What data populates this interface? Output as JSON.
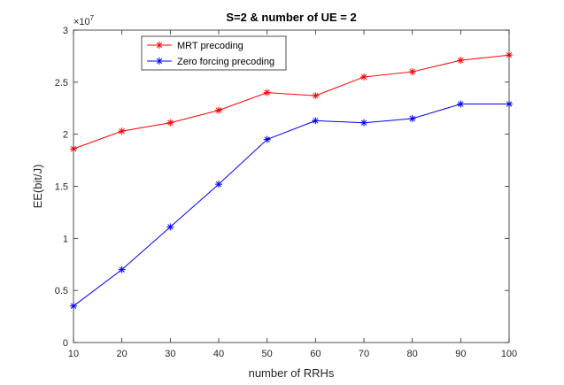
{
  "chart_data": {
    "type": "line",
    "title": "S=2 & number of UE = 2",
    "xlabel": "number of RRHs",
    "ylabel": "EE(bit/J)",
    "y_exponent_label": "×10",
    "y_exponent_power": "7",
    "xlim": [
      10,
      100
    ],
    "ylim": [
      0,
      3
    ],
    "x_ticks": [
      10,
      20,
      30,
      40,
      50,
      60,
      70,
      80,
      90,
      100
    ],
    "y_ticks": [
      0,
      0.5,
      1,
      1.5,
      2,
      2.5,
      3
    ],
    "x_tick_labels": [
      "10",
      "20",
      "30",
      "40",
      "50",
      "60",
      "70",
      "80",
      "90",
      "100"
    ],
    "y_tick_labels": [
      "0",
      "0.5",
      "1",
      "1.5",
      "2",
      "2.5",
      "3"
    ],
    "grid": false,
    "legend_position": "top-left",
    "x": [
      10,
      20,
      30,
      40,
      50,
      60,
      70,
      80,
      90,
      100
    ],
    "series": [
      {
        "name": "MRT precoding",
        "color": "#ff0000",
        "marker": "asterisk",
        "values": [
          1.86,
          2.03,
          2.11,
          2.23,
          2.4,
          2.37,
          2.55,
          2.6,
          2.71,
          2.76
        ]
      },
      {
        "name": "Zero forcing precoding",
        "color": "#0000ff",
        "marker": "asterisk",
        "values": [
          0.35,
          0.7,
          1.11,
          1.52,
          1.95,
          2.13,
          2.11,
          2.15,
          2.29,
          2.29
        ]
      }
    ]
  }
}
